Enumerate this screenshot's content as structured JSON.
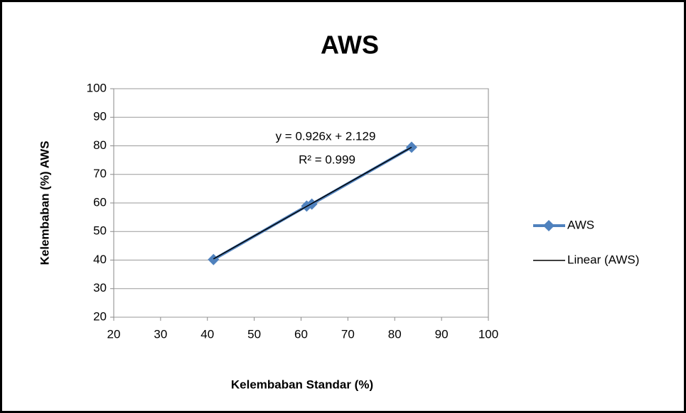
{
  "chart_data": {
    "type": "scatter",
    "title": "AWS",
    "xlabel": "Kelembaban Standar (%)",
    "ylabel": "Kelembaban (%) AWS",
    "xlim": [
      20,
      100
    ],
    "xticks": [
      20,
      30,
      40,
      50,
      60,
      70,
      80,
      90,
      100
    ],
    "ylim": [
      20,
      100
    ],
    "yticks": [
      20,
      30,
      40,
      50,
      60,
      70,
      80,
      90,
      100
    ],
    "grid": true,
    "legend": "right",
    "annotations": [
      "y = 0.926x + 2.129",
      "R² = 0.999"
    ],
    "series": [
      {
        "name": "AWS",
        "color": "#4f81bd",
        "marker": "diamond",
        "x": [
          41.3,
          61.2,
          62.3,
          83.6
        ],
        "values": [
          40.2,
          58.9,
          59.6,
          79.5
        ]
      },
      {
        "name": "Linear (AWS)",
        "color": "#000000",
        "x": [
          41.3,
          83.6
        ],
        "values": [
          40.4,
          79.5
        ]
      }
    ]
  }
}
